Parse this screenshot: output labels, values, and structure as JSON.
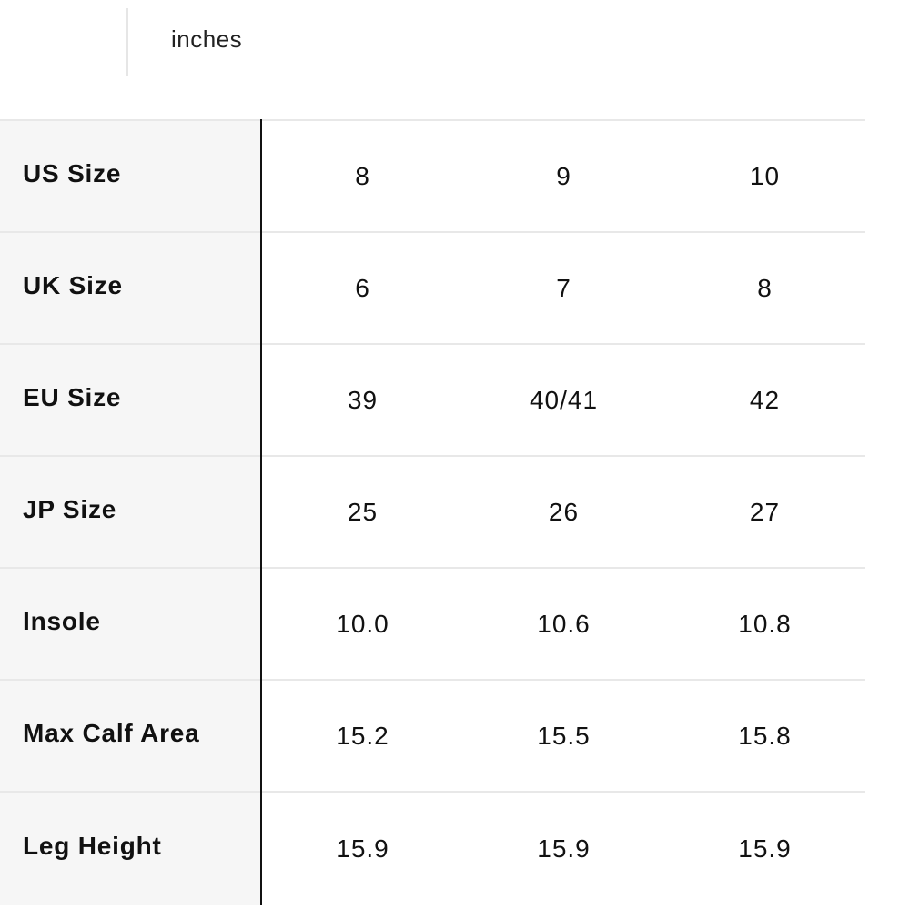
{
  "unit_toggle": {
    "selected": "inches"
  },
  "size_table": {
    "rows": [
      {
        "label": "US Size",
        "values": [
          "8",
          "9",
          "10"
        ]
      },
      {
        "label": "UK Size",
        "values": [
          "6",
          "7",
          "8"
        ]
      },
      {
        "label": "EU Size",
        "values": [
          "39",
          "40/41",
          "42"
        ]
      },
      {
        "label": "JP Size",
        "values": [
          "25",
          "26",
          "27"
        ]
      },
      {
        "label": "Insole",
        "values": [
          "10.0",
          "10.6",
          "10.8"
        ]
      },
      {
        "label": "Max Calf Area",
        "values": [
          "15.2",
          "15.5",
          "15.8"
        ]
      },
      {
        "label": "Leg Height",
        "values": [
          "15.9",
          "15.9",
          "15.9"
        ]
      }
    ]
  }
}
